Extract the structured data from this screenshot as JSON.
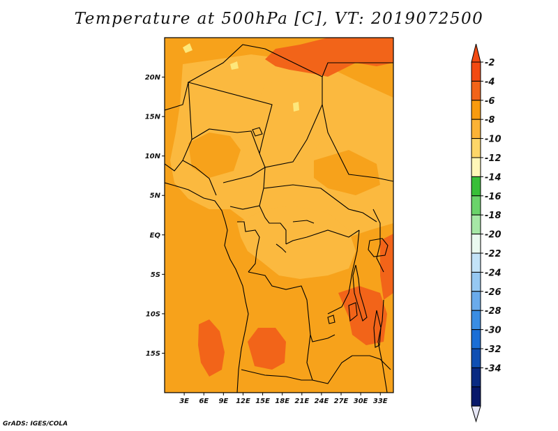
{
  "title": "Temperature at 500hPa [C], VT: 2019072500",
  "footer": "GrADS: IGES/COLA",
  "map": {
    "lon_range": [
      0,
      35
    ],
    "lat_range": [
      -20,
      25
    ],
    "lat_ticks": [
      {
        "value": 20,
        "label": "20N"
      },
      {
        "value": 15,
        "label": "15N"
      },
      {
        "value": 10,
        "label": "10N"
      },
      {
        "value": 5,
        "label": "5N"
      },
      {
        "value": 0,
        "label": "EQ"
      },
      {
        "value": -5,
        "label": "5S"
      },
      {
        "value": -10,
        "label": "10S"
      },
      {
        "value": -15,
        "label": "15S"
      }
    ],
    "lon_ticks": [
      {
        "value": 3,
        "label": "3E"
      },
      {
        "value": 6,
        "label": "6E"
      },
      {
        "value": 9,
        "label": "9E"
      },
      {
        "value": 12,
        "label": "12E"
      },
      {
        "value": 15,
        "label": "15E"
      },
      {
        "value": 18,
        "label": "18E"
      },
      {
        "value": 21,
        "label": "21E"
      },
      {
        "value": 24,
        "label": "24E"
      },
      {
        "value": 27,
        "label": "27E"
      },
      {
        "value": 30,
        "label": "30E"
      },
      {
        "value": 33,
        "label": "33E"
      }
    ],
    "field_colors": {
      "t_-4_-2": "#f26419",
      "t_-6_-4": "#f7a21b",
      "t_-8_-6": "#fbb93f",
      "t_-10_-8": "#fde77b"
    }
  },
  "colorbar": {
    "labels": [
      "-2",
      "-4",
      "-6",
      "-8",
      "-10",
      "-12",
      "-14",
      "-16",
      "-18",
      "-20",
      "-22",
      "-24",
      "-26",
      "-28",
      "-30",
      "-32",
      "-34"
    ],
    "colors": [
      "#f24a12",
      "#f26419",
      "#f89b0e",
      "#fbb236",
      "#fdd668",
      "#fff7b8",
      "#38bf38",
      "#6ad36a",
      "#a6e8a6",
      "#eafaf0",
      "#c3e3f8",
      "#96c8f2",
      "#6aabeb",
      "#3a8de3",
      "#1a6ed6",
      "#0f4fb3",
      "#0a2a82",
      "#08186a"
    ],
    "top_triangle_color": "#f24a12",
    "bottom_triangle_color": "#e6e6f5"
  }
}
